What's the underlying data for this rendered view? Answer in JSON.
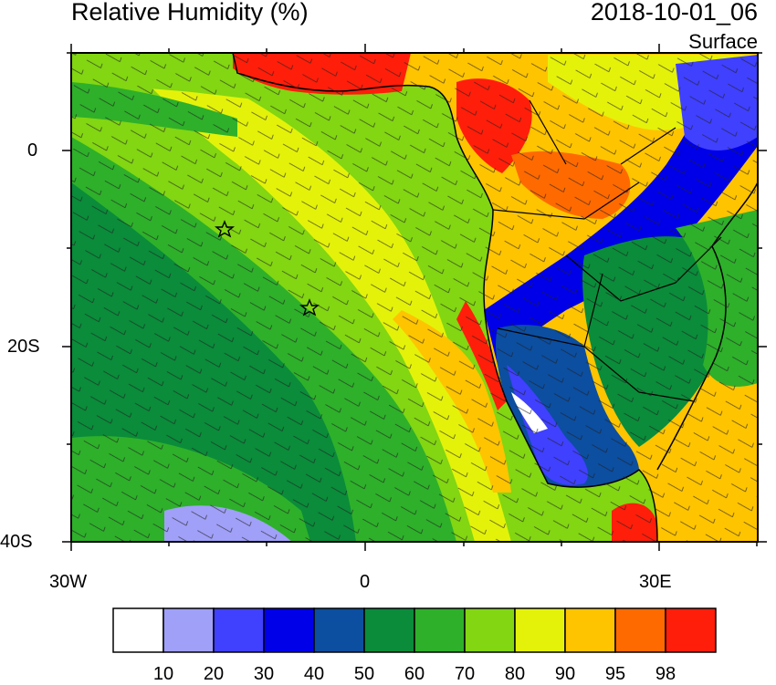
{
  "header": {
    "title": "Relative Humidity (%)",
    "datetime": "2018-10-01_06",
    "level": "Surface"
  },
  "axes": {
    "y_labels": [
      "0",
      "20S",
      "40S"
    ],
    "x_labels": [
      "30W",
      "0",
      "30E"
    ]
  },
  "colorbar": {
    "colors": [
      "#ffffff",
      "#a0a0f8",
      "#4040ff",
      "#0000e8",
      "#0c4ea0",
      "#0a8c3a",
      "#2eb02a",
      "#82d612",
      "#e4f20a",
      "#ffc400",
      "#ff6a00",
      "#ff1e0a"
    ],
    "labels": [
      "10",
      "20",
      "30",
      "40",
      "50",
      "60",
      "70",
      "80",
      "90",
      "95",
      "98"
    ]
  },
  "markers": {
    "type": "star",
    "count": 2
  }
}
